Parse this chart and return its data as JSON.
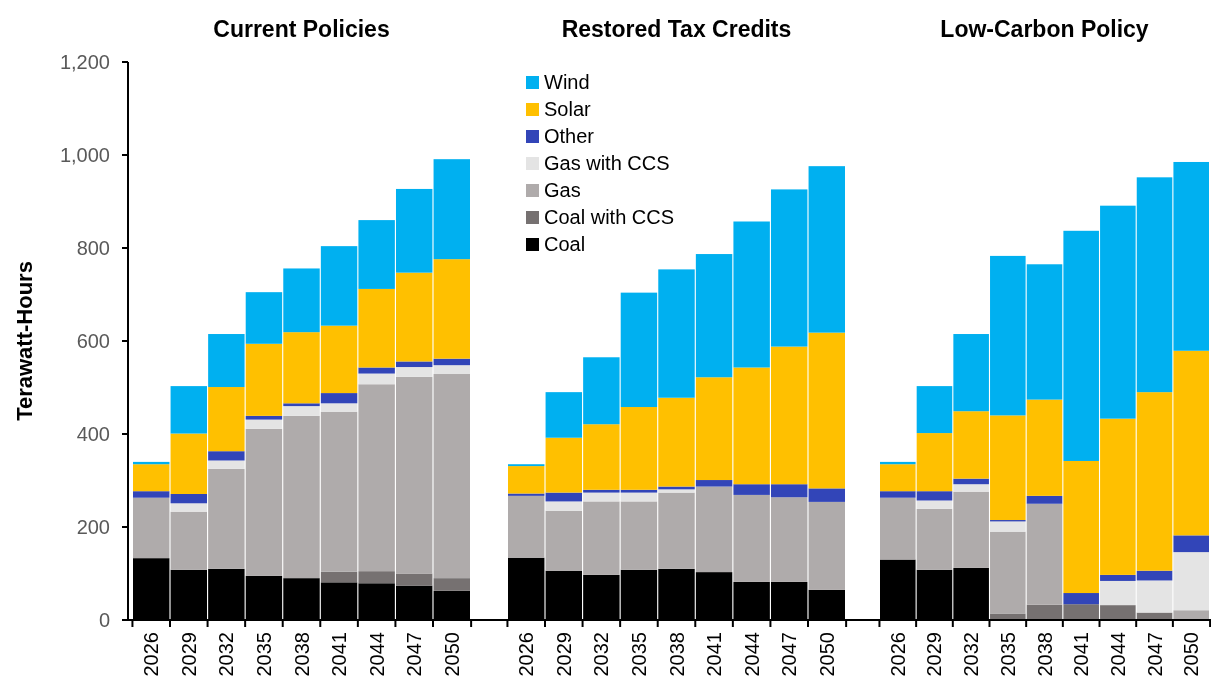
{
  "chart_data": [
    {
      "type": "bar",
      "stacked": true,
      "title": "Current Policies",
      "ylabel": "Terawatt-Hours",
      "categories": [
        "2026",
        "2029",
        "2032",
        "2035",
        "2038",
        "2041",
        "2044",
        "2047",
        "2050"
      ],
      "ylim": [
        0,
        1200
      ],
      "yticks": [
        0,
        200,
        400,
        600,
        800,
        {
          "value": 1000,
          "label": "1,000"
        },
        {
          "value": 1200,
          "label": "1,200"
        }
      ],
      "legend": false,
      "series": [
        {
          "color": "#000000",
          "values": [
            133,
            108,
            110,
            95,
            90,
            81,
            79,
            74,
            63
          ]
        },
        {
          "color": "#767171",
          "values": [
            0,
            0,
            0,
            0,
            0,
            23,
            26,
            26,
            27
          ]
        },
        {
          "color": "#afabab",
          "values": [
            130,
            125,
            215,
            316,
            349,
            344,
            402,
            423,
            439
          ]
        },
        {
          "color": "#e4e4e4",
          "values": [
            0,
            18,
            18,
            20,
            21,
            18,
            23,
            21,
            19
          ]
        },
        {
          "color": "#3245b8",
          "values": [
            14,
            20,
            20,
            8,
            6,
            22,
            13,
            12,
            14
          ]
        },
        {
          "color": "#ffc000",
          "values": [
            58,
            130,
            138,
            155,
            153,
            145,
            169,
            191,
            214
          ]
        },
        {
          "color": "#00b0f0",
          "values": [
            5,
            102,
            114,
            111,
            137,
            171,
            148,
            180,
            215
          ]
        }
      ]
    },
    {
      "type": "bar",
      "stacked": true,
      "title": "Restored Tax Credits",
      "categories": [
        "2026",
        "2029",
        "2032",
        "2035",
        "2038",
        "2041",
        "2044",
        "2047",
        "2050"
      ],
      "ylim": [
        0,
        1200
      ],
      "tick_labels": "x",
      "legend": "top left",
      "series": [
        {
          "name": "Coal",
          "color": "#000000",
          "values": [
            134,
            106,
            97,
            108,
            110,
            103,
            82,
            82,
            65
          ]
        },
        {
          "name": "Coal with CCS",
          "color": "#767171",
          "values": [
            0,
            0,
            0,
            0,
            0,
            0,
            0,
            0,
            0
          ]
        },
        {
          "name": "Gas",
          "color": "#afabab",
          "values": [
            133,
            129,
            158,
            147,
            164,
            184,
            187,
            182,
            189
          ]
        },
        {
          "name": "Gas with CCS",
          "color": "#e4e4e4",
          "values": [
            0,
            20,
            19,
            19,
            7,
            0,
            0,
            0,
            0
          ]
        },
        {
          "name": "Other",
          "color": "#3245b8",
          "values": [
            5,
            19,
            6,
            6,
            6,
            14,
            23,
            28,
            29
          ]
        },
        {
          "name": "Solar",
          "color": "#ffc000",
          "values": [
            59,
            118,
            141,
            178,
            191,
            221,
            251,
            296,
            335
          ]
        },
        {
          "name": "Wind",
          "color": "#00b0f0",
          "values": [
            4,
            98,
            144,
            246,
            276,
            265,
            314,
            338,
            358
          ]
        }
      ]
    },
    {
      "type": "bar",
      "stacked": true,
      "title": "Low-Carbon Policy",
      "categories": [
        "2026",
        "2029",
        "2032",
        "2035",
        "2038",
        "2041",
        "2044",
        "2047",
        "2050"
      ],
      "ylim": [
        0,
        1200
      ],
      "tick_labels": "x",
      "legend": false,
      "series": [
        {
          "color": "#000000",
          "values": [
            130,
            108,
            112,
            0,
            0,
            0,
            0,
            0,
            0
          ]
        },
        {
          "color": "#767171",
          "values": [
            0,
            0,
            0,
            14,
            33,
            34,
            32,
            16,
            null
          ]
        },
        {
          "color": "#afabab",
          "values": [
            133,
            131,
            164,
            176,
            217,
            0,
            0,
            0,
            21
          ]
        },
        {
          "color": "#e4e4e4",
          "values": [
            0,
            18,
            16,
            22,
            0,
            0,
            52,
            69,
            125
          ]
        },
        {
          "color": "#3245b8",
          "values": [
            14,
            20,
            12,
            3,
            17,
            24,
            13,
            21,
            36
          ]
        },
        {
          "color": "#ffc000",
          "values": [
            58,
            125,
            145,
            225,
            207,
            284,
            336,
            384,
            397
          ]
        },
        {
          "color": "#00b0f0",
          "values": [
            5,
            101,
            166,
            343,
            291,
            495,
            458,
            462,
            406
          ]
        }
      ]
    }
  ]
}
